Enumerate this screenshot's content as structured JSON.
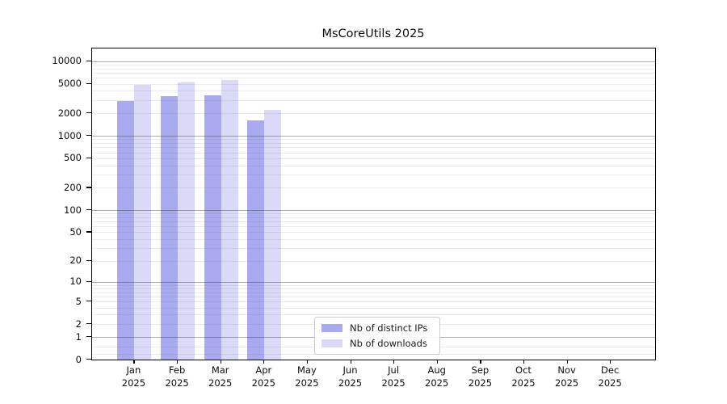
{
  "chart_data": {
    "type": "bar",
    "title": "MsCoreUtils 2025",
    "scale": "log1p",
    "grid": "horizontal, minor light + major gray at powers of 10",
    "legend_position": "bottom-center-inside",
    "categories": [
      "Jan",
      "Feb",
      "Mar",
      "Apr",
      "May",
      "Jun",
      "Jul",
      "Aug",
      "Sep",
      "Oct",
      "Nov",
      "Dec"
    ],
    "year_label": "2025",
    "yticks": [
      0,
      1,
      2,
      5,
      10,
      20,
      50,
      100,
      200,
      500,
      1000,
      2000,
      5000,
      10000
    ],
    "ylim": [
      0,
      14800
    ],
    "series": [
      {
        "name": "Nb of distinct IPs",
        "color": "#a9a9ef",
        "values": [
          2920,
          3420,
          3510,
          1600,
          null,
          null,
          null,
          null,
          null,
          null,
          null,
          null
        ]
      },
      {
        "name": "Nb of downloads",
        "color": "#dadaf8",
        "values": [
          4790,
          5220,
          5630,
          2250,
          null,
          null,
          null,
          null,
          null,
          null,
          null,
          null
        ]
      }
    ]
  }
}
